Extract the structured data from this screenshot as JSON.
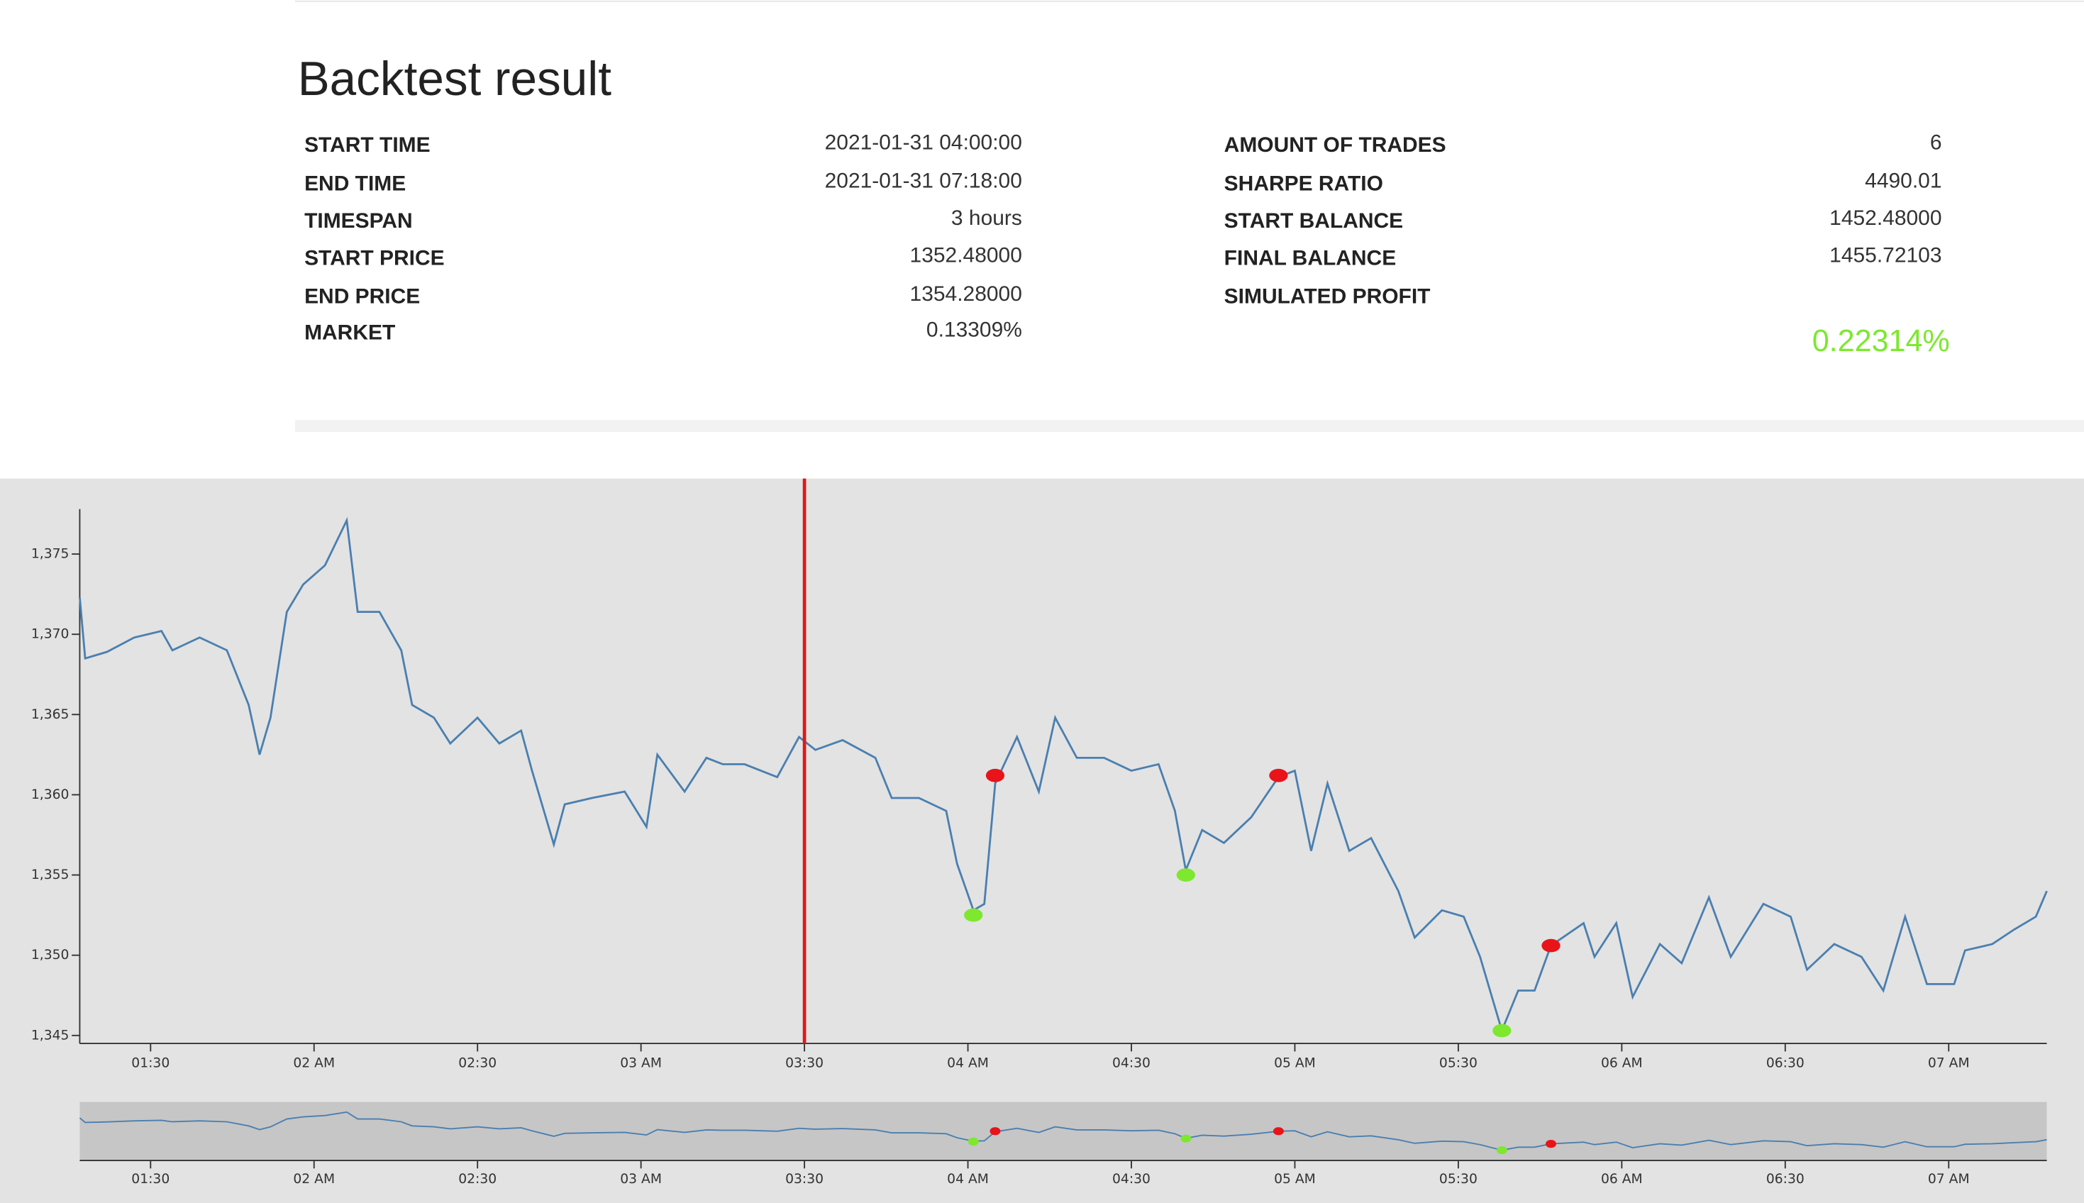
{
  "summary": {
    "title": "Backtest result",
    "left": [
      {
        "label": "START TIME",
        "value": "2021-01-31 04:00:00"
      },
      {
        "label": "END TIME",
        "value": "2021-01-31 07:18:00"
      },
      {
        "label": "TIMESPAN",
        "value": "3 hours"
      },
      {
        "label": "START PRICE",
        "value": "1352.48000"
      },
      {
        "label": "END PRICE",
        "value": "1354.28000"
      },
      {
        "label": "MARKET",
        "value": "0.13309%"
      }
    ],
    "right": [
      {
        "label": "AMOUNT OF TRADES",
        "value": "6"
      },
      {
        "label": "SHARPE RATIO",
        "value": "4490.01"
      },
      {
        "label": "START BALANCE",
        "value": "1452.48000"
      },
      {
        "label": "FINAL BALANCE",
        "value": "1455.72103"
      },
      {
        "label": "SIMULATED PROFIT",
        "value": "0.22314%"
      }
    ]
  },
  "chart_data": {
    "type": "line",
    "color": "#4a7fb0",
    "x": [
      "01:17",
      "01:18",
      "01:22",
      "01:27",
      "01:32",
      "01:34",
      "01:39",
      "01:44",
      "01:48",
      "01:50",
      "01:52",
      "01:55",
      "01:58",
      "02:02",
      "02:06",
      "02:08",
      "02:12",
      "02:16",
      "02:18",
      "02:22",
      "02:25",
      "02:30",
      "02:34",
      "02:38",
      "02:40",
      "02:44",
      "02:46",
      "02:51",
      "02:57",
      "03:01",
      "03:03",
      "03:08",
      "03:12",
      "03:15",
      "03:19",
      "03:25",
      "03:29",
      "03:32",
      "03:37",
      "03:43",
      "03:46",
      "03:51",
      "03:56",
      "03:58",
      "04:01",
      "04:03",
      "04:05",
      "04:09",
      "04:13",
      "04:16",
      "04:20",
      "04:25",
      "04:30",
      "04:35",
      "04:38",
      "04:40",
      "04:43",
      "04:47",
      "04:52",
      "04:57",
      "05:00",
      "05:03",
      "05:06",
      "05:10",
      "05:14",
      "05:19",
      "05:22",
      "05:27",
      "05:31",
      "05:34",
      "05:38",
      "05:41",
      "05:44",
      "05:47",
      "05:53",
      "05:55",
      "05:59",
      "06:02",
      "06:07",
      "06:11",
      "06:16",
      "06:20",
      "06:26",
      "06:31",
      "06:34",
      "06:39",
      "06:44",
      "06:48",
      "06:52",
      "06:56",
      "07:01",
      "07:03",
      "07:08",
      "07:12",
      "07:16",
      "07:18"
    ],
    "values": [
      1372.3,
      1368.5,
      1368.9,
      1369.8,
      1370.2,
      1369,
      1369.8,
      1369,
      1365.6,
      1362.5,
      1364.8,
      1371.4,
      1373.1,
      1374.3,
      1377.1,
      1371.4,
      1371.4,
      1369,
      1365.6,
      1364.8,
      1363.2,
      1364.8,
      1363.2,
      1364,
      1361.5,
      1356.9,
      1359.4,
      1359.8,
      1360.2,
      1358,
      1362.5,
      1360.2,
      1362.3,
      1361.9,
      1361.9,
      1361.1,
      1363.6,
      1362.8,
      1363.4,
      1362.3,
      1359.8,
      1359.8,
      1359,
      1355.7,
      1352.8,
      1353.2,
      1360.7,
      1363.6,
      1360.2,
      1364.8,
      1362.3,
      1362.3,
      1361.5,
      1361.9,
      1359,
      1355.3,
      1357.8,
      1357,
      1358.6,
      1361.1,
      1361.5,
      1356.5,
      1360.7,
      1356.5,
      1357.3,
      1354,
      1351.1,
      1352.8,
      1352.4,
      1349.9,
      1345.3,
      1347.8,
      1347.8,
      1350.6,
      1352,
      1349.9,
      1352,
      1347.4,
      1350.7,
      1349.5,
      1353.6,
      1349.9,
      1353.2,
      1352.4,
      1349.1,
      1350.7,
      1349.9,
      1347.8,
      1352.4,
      1348.2,
      1348.2,
      1350.3,
      1350.7,
      1351.6,
      1352.4,
      1354
    ],
    "buys": {
      "color": "#7de82e",
      "x": [
        "04:01",
        "04:40",
        "05:38"
      ],
      "values": [
        1352.5,
        1355,
        1345.3
      ]
    },
    "sells": {
      "color": "#e8141a",
      "x": [
        "04:05",
        "04:57",
        "05:47"
      ],
      "values": [
        1361.2,
        1361.2,
        1350.6
      ]
    },
    "marker_x": "03:30",
    "marker_color": "#e01818",
    "xlim": [
      "01:17",
      "07:18"
    ],
    "xticks": [
      {
        "value": "01:30",
        "label": "01:30"
      },
      {
        "value": "02:00",
        "label": "02 AM"
      },
      {
        "value": "02:30",
        "label": "02:30"
      },
      {
        "value": "03:00",
        "label": "03 AM"
      },
      {
        "value": "03:30",
        "label": "03:30"
      },
      {
        "value": "04:00",
        "label": "04 AM"
      },
      {
        "value": "04:30",
        "label": "04:30"
      },
      {
        "value": "05:00",
        "label": "05 AM"
      },
      {
        "value": "05:30",
        "label": "05:30"
      },
      {
        "value": "06:00",
        "label": "06 AM"
      },
      {
        "value": "06:30",
        "label": "06:30"
      },
      {
        "value": "07:00",
        "label": "07 AM"
      }
    ],
    "ylim": [
      1344.5,
      1377.8
    ],
    "yticks": [
      {
        "value": 1345,
        "label": "1,345"
      },
      {
        "value": 1350,
        "label": "1,350"
      },
      {
        "value": 1355,
        "label": "1,355"
      },
      {
        "value": 1360,
        "label": "1,360"
      },
      {
        "value": 1365,
        "label": "1,365"
      },
      {
        "value": 1370,
        "label": "1,370"
      },
      {
        "value": 1375,
        "label": "1,375"
      }
    ]
  }
}
